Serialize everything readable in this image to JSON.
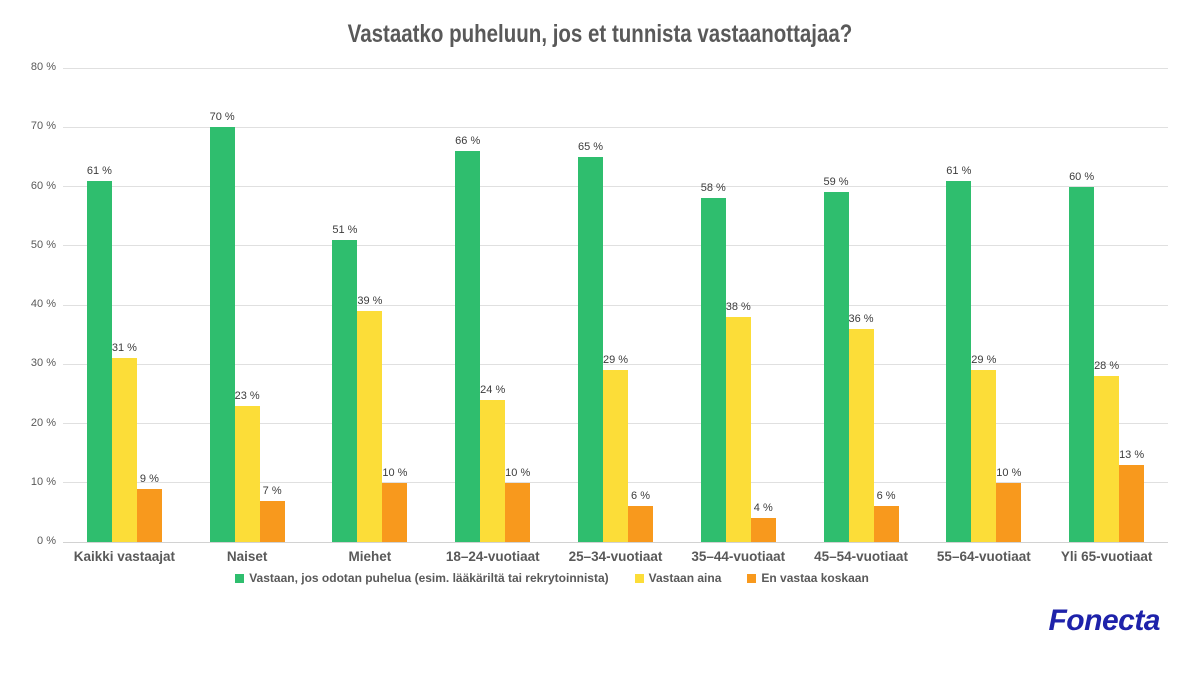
{
  "title": "Vastaatko puheluun, jos et tunnista vastaanottajaa?",
  "brand": {
    "logo_text": "Fonecta",
    "color": "#1e22aa"
  },
  "colors": {
    "title_text": "#595959",
    "axis_text": "#595959",
    "value_label_text": "#3c3c3c",
    "gridline": "#e0e0e0",
    "background": "#ffffff"
  },
  "chart_data": {
    "type": "bar",
    "title": "Vastaatko puheluun, jos et tunnista vastaanottajaa?",
    "categories": [
      "Kaikki vastaajat",
      "Naiset",
      "Miehet",
      "18–24-vuotiaat",
      "25–34-vuotiaat",
      "35–44-vuotiaat",
      "45–54-vuotiaat",
      "55–64-vuotiaat",
      "Yli 65-vuotiaat"
    ],
    "series": [
      {
        "name": "Vastaan, jos odotan puhelua (esim. lääkäriltä tai rekrytoinnista)",
        "color": "#2fbe6e",
        "values": [
          61,
          70,
          51,
          66,
          65,
          58,
          59,
          61,
          60
        ]
      },
      {
        "name": "Vastaan aina",
        "color": "#fcdd38",
        "values": [
          31,
          23,
          39,
          24,
          29,
          38,
          36,
          29,
          28
        ]
      },
      {
        "name": "En vastaa koskaan",
        "color": "#f8991d",
        "values": [
          9,
          7,
          10,
          10,
          6,
          4,
          6,
          10,
          13
        ]
      }
    ],
    "xlabel": "",
    "ylabel": "",
    "ylim": [
      0,
      80
    ],
    "ytick_step": 10,
    "ytick_suffix": " %",
    "value_suffix": " %",
    "grid": true,
    "legend_position": "bottom"
  }
}
